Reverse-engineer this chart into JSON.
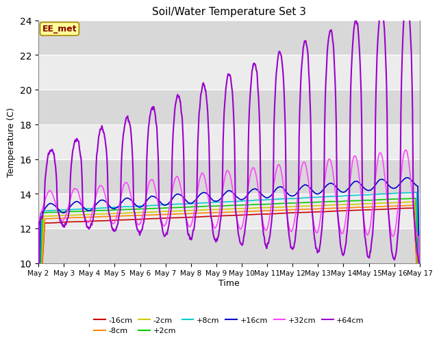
{
  "title": "Soil/Water Temperature Set 3",
  "xlabel": "Time",
  "ylabel": "Temperature (C)",
  "ylim": [
    10,
    24
  ],
  "background_color": "#ffffff",
  "plot_bg_light": "#ececec",
  "plot_bg_dark": "#d8d8d8",
  "annotation_text": "EE_met",
  "annotation_bg": "#ffff99",
  "annotation_border": "#aa8800",
  "xtick_labels": [
    "May 2",
    "May 3",
    "May 4",
    "May 5",
    "May 6",
    "May 7",
    "May 8",
    "May 9",
    "May 10",
    "May 11",
    "May 12",
    "May 13",
    "May 14",
    "May 15",
    "May 16",
    "May 17"
  ],
  "series_colors": {
    "-16cm": "#cc0000",
    "-8cm": "#ff8800",
    "-2cm": "#cccc00",
    "+2cm": "#00cc00",
    "+8cm": "#00cccc",
    "+16cm": "#0000cc",
    "+32cm": "#ff44ff",
    "+64cm": "#9900cc"
  },
  "legend_entries": [
    "-16cm",
    "-8cm",
    "-2cm",
    "+2cm",
    "+8cm",
    "+16cm",
    "+32cm",
    "+64cm"
  ]
}
